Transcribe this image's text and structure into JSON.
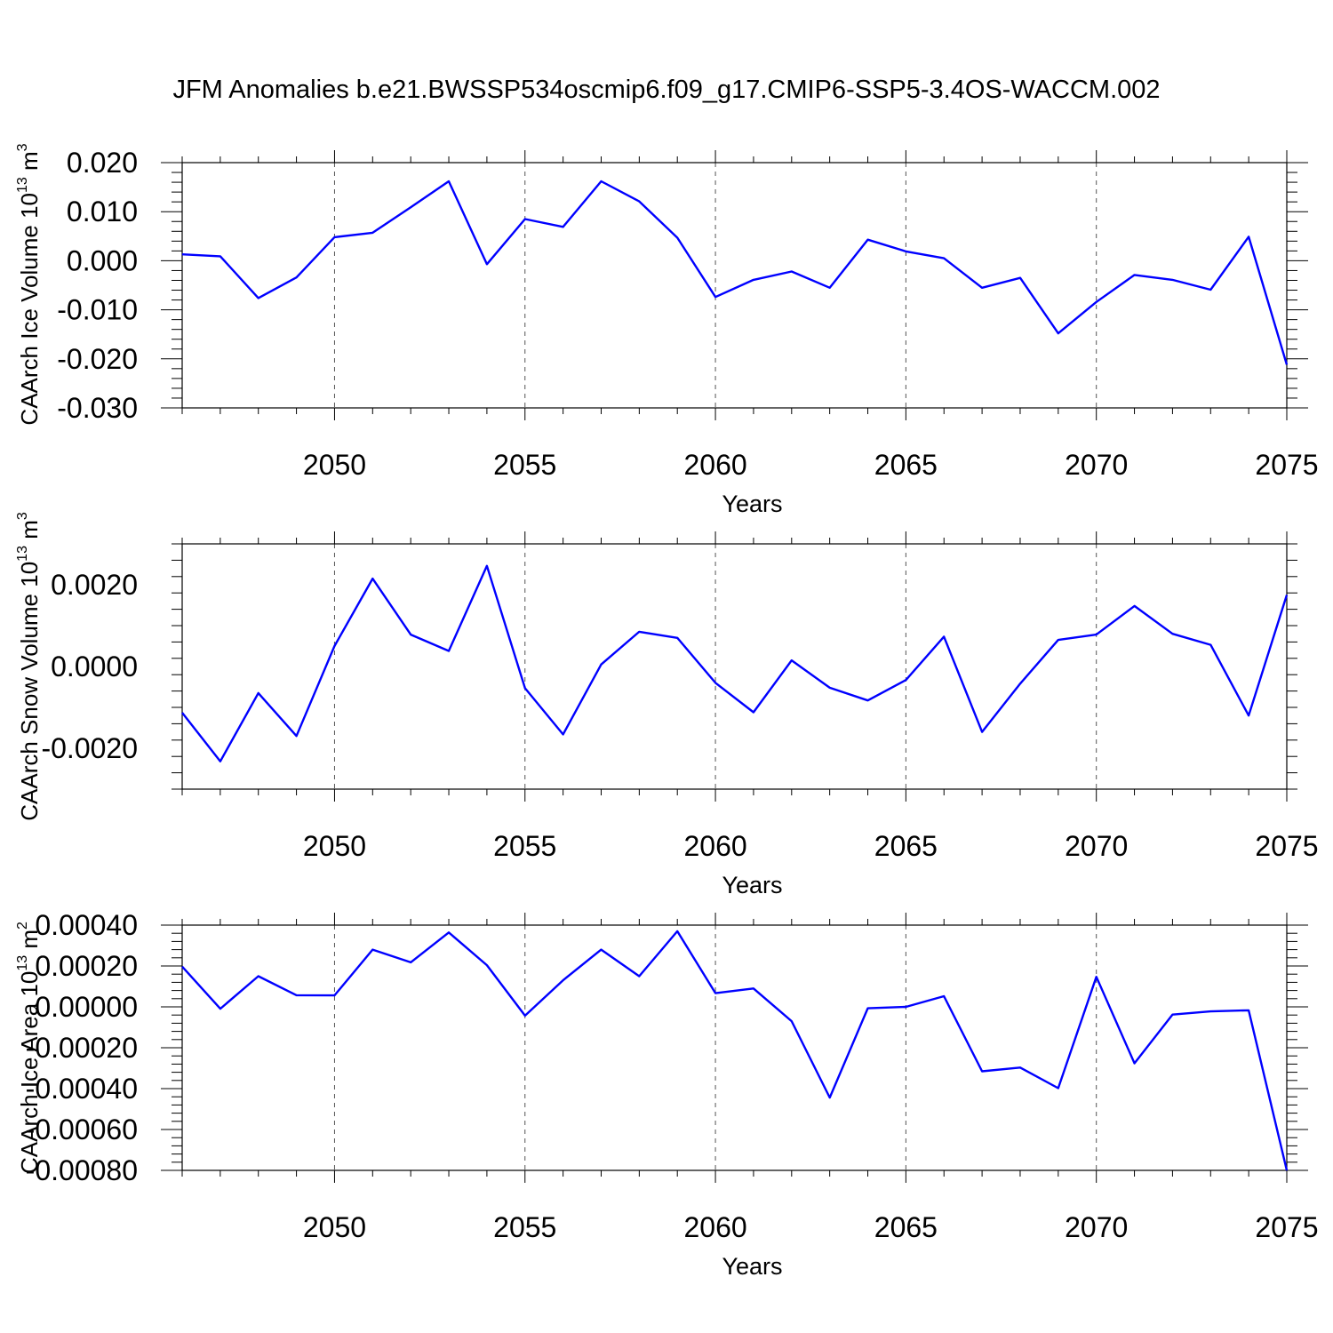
{
  "figure_title": "JFM Anomalies b.e21.BWSSP534oscmip6.f09_g17.CMIP6-SSP5-3.4OS-WACCM.002",
  "chart_data": [
    {
      "type": "line",
      "title": "JFM Anomalies b.e21.BWSSP534oscmip6.f09_g17.CMIP6-SSP5-3.4OS-WACCM.002",
      "xlabel": "Years",
      "ylabel": "CAArch Ice Volume 10",
      "ylabel_exponent": "13",
      "ylabel_units": "m",
      "ylabel_units_exponent": "3",
      "xlim": [
        2046,
        2075
      ],
      "ylim": [
        -0.03,
        0.02
      ],
      "grid": "dashed vertical at major x ticks",
      "xticks": [
        2050,
        2055,
        2060,
        2065,
        2070,
        2075
      ],
      "xtick_labels": [
        "2050",
        "2055",
        "2060",
        "2065",
        "2070",
        "2075"
      ],
      "yticks": [
        -0.03,
        -0.02,
        -0.01,
        0.0,
        0.01,
        0.02
      ],
      "ytick_labels": [
        "-0.030",
        "-0.020",
        "-0.010",
        "0.000",
        "0.010",
        "0.020"
      ],
      "line_color": "#0000ff",
      "x": [
        2046,
        2047,
        2048,
        2049,
        2050,
        2051,
        2052,
        2053,
        2054,
        2055,
        2056,
        2057,
        2058,
        2059,
        2060,
        2061,
        2062,
        2063,
        2064,
        2065,
        2066,
        2067,
        2068,
        2069,
        2070,
        2071,
        2072,
        2073,
        2074,
        2075
      ],
      "values": [
        0.0013,
        0.0009,
        -0.0076,
        -0.0034,
        0.0048,
        0.0057,
        0.0109,
        0.0162,
        -0.0007,
        0.0085,
        0.0069,
        0.0162,
        0.0121,
        0.0047,
        -0.0074,
        -0.0039,
        -0.0022,
        -0.0055,
        0.0043,
        0.0019,
        0.0005,
        -0.0055,
        -0.0035,
        -0.0148,
        -0.0084,
        -0.0029,
        -0.0039,
        -0.0059,
        0.0049,
        -0.0212
      ]
    },
    {
      "type": "line",
      "title": "",
      "xlabel": "Years",
      "ylabel": "CAArch Snow Volume 10",
      "ylabel_exponent": "13",
      "ylabel_units": "m",
      "ylabel_units_exponent": "3",
      "xlim": [
        2046,
        2075
      ],
      "ylim": [
        -0.003,
        0.003
      ],
      "grid": "dashed vertical at major x ticks",
      "xticks": [
        2050,
        2055,
        2060,
        2065,
        2070,
        2075
      ],
      "xtick_labels": [
        "2050",
        "2055",
        "2060",
        "2065",
        "2070",
        "2075"
      ],
      "yticks": [
        -0.002,
        0.0,
        0.002
      ],
      "ytick_labels": [
        "-0.0020",
        "0.0000",
        "0.0020"
      ],
      "line_color": "#0000ff",
      "x": [
        2046,
        2047,
        2048,
        2049,
        2050,
        2051,
        2052,
        2053,
        2054,
        2055,
        2056,
        2057,
        2058,
        2059,
        2060,
        2061,
        2062,
        2063,
        2064,
        2065,
        2066,
        2067,
        2068,
        2069,
        2070,
        2071,
        2072,
        2073,
        2074,
        2075
      ],
      "values": [
        -0.00113,
        -0.00232,
        -0.00065,
        -0.0017,
        0.0005,
        0.00215,
        0.00078,
        0.00038,
        0.00246,
        -0.00053,
        -0.00166,
        5e-05,
        0.00085,
        0.0007,
        -0.0004,
        -0.00112,
        0.00015,
        -0.00052,
        -0.00083,
        -0.00033,
        0.00073,
        -0.0016,
        -0.00042,
        0.00065,
        0.00078,
        0.00148,
        0.0008,
        0.00053,
        -0.0012,
        0.00175
      ]
    },
    {
      "type": "line",
      "title": "",
      "xlabel": "Years",
      "ylabel": "CAArch Ice Area 10",
      "ylabel_exponent": "13",
      "ylabel_units": "m",
      "ylabel_units_exponent": "2",
      "xlim": [
        2046,
        2075
      ],
      "ylim": [
        -0.0008,
        0.0004
      ],
      "grid": "dashed vertical at major x ticks",
      "xticks": [
        2050,
        2055,
        2060,
        2065,
        2070,
        2075
      ],
      "xtick_labels": [
        "2050",
        "2055",
        "2060",
        "2065",
        "2070",
        "2075"
      ],
      "yticks": [
        -0.0008,
        -0.0006,
        -0.0004,
        -0.0002,
        0.0,
        0.0002,
        0.0004
      ],
      "ytick_labels": [
        "-0.00080",
        "-0.00060",
        "-0.00040",
        "-0.00020",
        "0.00000",
        "0.00020",
        "0.00040"
      ],
      "line_color": "#0000ff",
      "x": [
        2046,
        2047,
        2048,
        2049,
        2050,
        2051,
        2052,
        2053,
        2054,
        2055,
        2056,
        2057,
        2058,
        2059,
        2060,
        2061,
        2062,
        2063,
        2064,
        2065,
        2066,
        2067,
        2068,
        2069,
        2070,
        2071,
        2072,
        2073,
        2074,
        2075
      ],
      "values": [
        0.000197,
        -9e-06,
        0.00015,
        5.7e-05,
        5.6e-05,
        0.00028,
        0.000218,
        0.000364,
        0.000204,
        -4.3e-05,
        0.00013,
        0.00028,
        0.00015,
        0.00037,
        6.7e-05,
        9e-05,
        -7e-05,
        -0.000444,
        -7e-06,
        0.0,
        5.2e-05,
        -0.000315,
        -0.000297,
        -0.000398,
        0.000147,
        -0.000276,
        -3.8e-05,
        -2.2e-05,
        -1.7e-05,
        -0.0008
      ]
    }
  ]
}
